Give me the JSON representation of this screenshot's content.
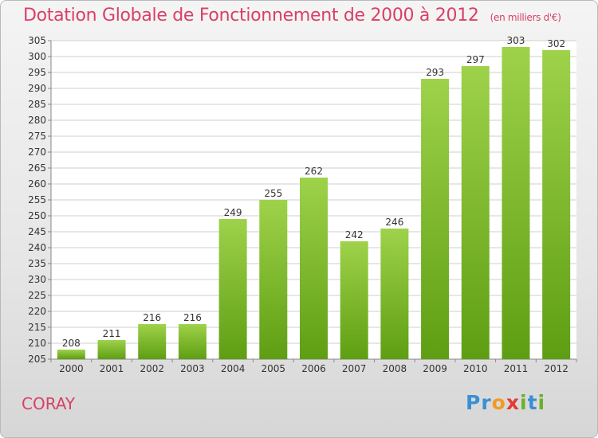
{
  "chart_data": {
    "type": "bar",
    "title": "Dotation Globale de Fonctionnement de 2000 à 2012",
    "subtitle": "(en milliers d'€)",
    "categories": [
      "2000",
      "2001",
      "2002",
      "2003",
      "2004",
      "2005",
      "2006",
      "2007",
      "2008",
      "2009",
      "2010",
      "2011",
      "2012"
    ],
    "values": [
      208,
      211,
      216,
      216,
      249,
      255,
      262,
      242,
      246,
      293,
      297,
      303,
      302
    ],
    "ylim": [
      205,
      305
    ],
    "ytick_step": 5,
    "grid": true,
    "bar_color": "#82c22e"
  },
  "footer": {
    "commune": "CORAY",
    "logo_letters": [
      {
        "ch": "P",
        "color": "#3a8fd4"
      },
      {
        "ch": "r",
        "color": "#3a8fd4"
      },
      {
        "ch": "o",
        "color": "#f39a1f"
      },
      {
        "ch": "x",
        "color": "#e53935"
      },
      {
        "ch": "i",
        "color": "#6ab02c"
      },
      {
        "ch": "t",
        "color": "#3a8fd4"
      },
      {
        "ch": "i",
        "color": "#6ab02c"
      }
    ]
  }
}
